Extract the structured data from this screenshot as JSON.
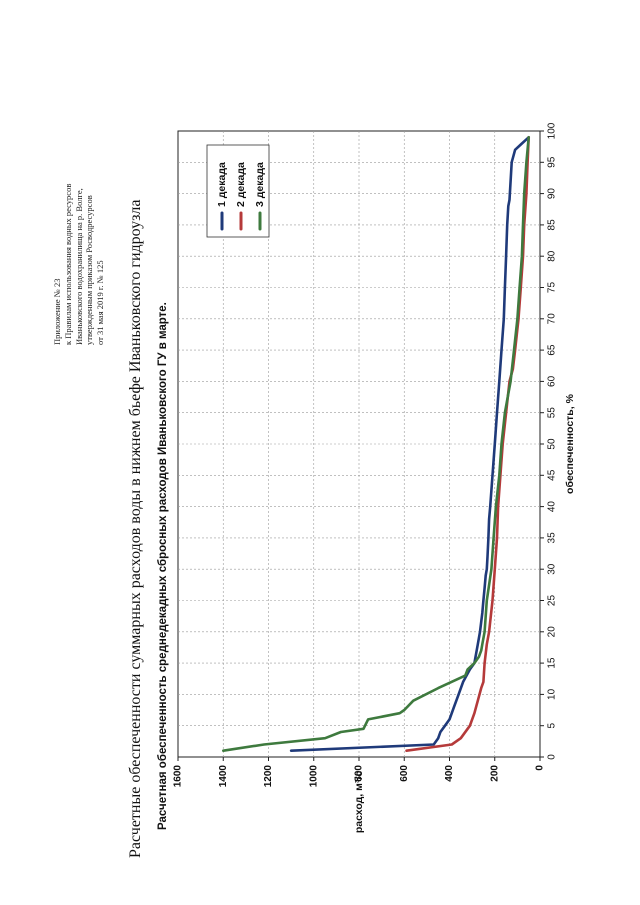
{
  "appendix": {
    "lines": [
      "Приложение № 23",
      "к Правилам использования водных ресурсов",
      "Иваньковского водохранилища на р. Волге,",
      "утвержденным приказом Росводресурсов",
      "от 31 мая 2019 г. № 125"
    ]
  },
  "page_title": "Расчетные обеспеченности суммарных расходов воды в нижнем бьефе Иваньковского гидроузла",
  "chart_data": {
    "type": "line",
    "title": "Расчетная обеспеченность среднедекадных сбросных расходов Иваньковского ГУ в марте.",
    "xlabel": "обеспеченность, %",
    "ylabel": "расход, м³/с",
    "xlim": [
      0,
      100
    ],
    "ylim": [
      0,
      1600
    ],
    "x_ticks": [
      0,
      5,
      10,
      15,
      20,
      25,
      30,
      35,
      40,
      45,
      50,
      55,
      60,
      65,
      70,
      75,
      80,
      85,
      90,
      95,
      100
    ],
    "y_ticks": [
      0,
      200,
      400,
      600,
      800,
      1000,
      1200,
      1400,
      1600
    ],
    "grid": true,
    "legend_position": "top-left",
    "series": [
      {
        "name": "1 декада",
        "color": "#1f3a7a",
        "x": [
          1,
          2,
          3,
          4,
          5,
          6,
          8,
          10,
          12,
          14,
          15,
          18,
          20,
          23,
          25,
          27,
          29,
          30,
          32,
          35,
          38,
          40,
          45,
          50,
          55,
          60,
          65,
          70,
          75,
          80,
          85,
          88,
          89,
          95,
          97,
          98,
          99
        ],
        "y": [
          1100,
          470,
          450,
          440,
          420,
          400,
          380,
          360,
          340,
          310,
          290,
          275,
          265,
          255,
          250,
          245,
          240,
          235,
          232,
          228,
          225,
          220,
          210,
          200,
          190,
          180,
          170,
          160,
          155,
          150,
          145,
          140,
          135,
          125,
          110,
          80,
          50
        ]
      },
      {
        "name": "2 декада",
        "color": "#b53a3a",
        "x": [
          1,
          2,
          3,
          5,
          7,
          9,
          11,
          12,
          15,
          18,
          20,
          25,
          30,
          35,
          40,
          45,
          50,
          55,
          60,
          62,
          65,
          70,
          75,
          80,
          85,
          90,
          95,
          99
        ],
        "y": [
          590,
          390,
          350,
          310,
          290,
          275,
          260,
          250,
          245,
          235,
          225,
          210,
          200,
          190,
          185,
          175,
          165,
          150,
          135,
          120,
          110,
          95,
          85,
          75,
          70,
          60,
          55,
          50
        ]
      },
      {
        "name": "3 декада",
        "color": "#3e7a3e",
        "x": [
          1,
          2,
          3,
          4,
          4.5,
          6,
          7,
          7.5,
          9,
          11,
          13,
          14,
          15,
          16,
          17,
          18,
          20,
          25,
          30,
          35,
          40,
          45,
          50,
          55,
          58,
          60,
          65,
          70,
          75,
          80,
          85,
          90,
          95,
          99
        ],
        "y": [
          1400,
          1220,
          950,
          880,
          780,
          760,
          620,
          600,
          560,
          450,
          330,
          320,
          290,
          270,
          260,
          255,
          245,
          235,
          215,
          205,
          195,
          180,
          170,
          155,
          140,
          130,
          115,
          100,
          90,
          80,
          75,
          70,
          60,
          50
        ]
      }
    ]
  }
}
